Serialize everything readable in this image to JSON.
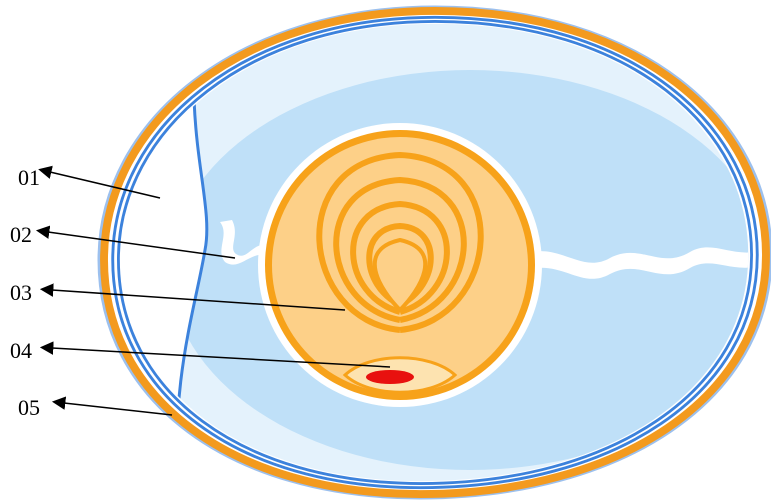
{
  "labels": [
    "01",
    "02",
    "03",
    "04",
    "05"
  ]
}
